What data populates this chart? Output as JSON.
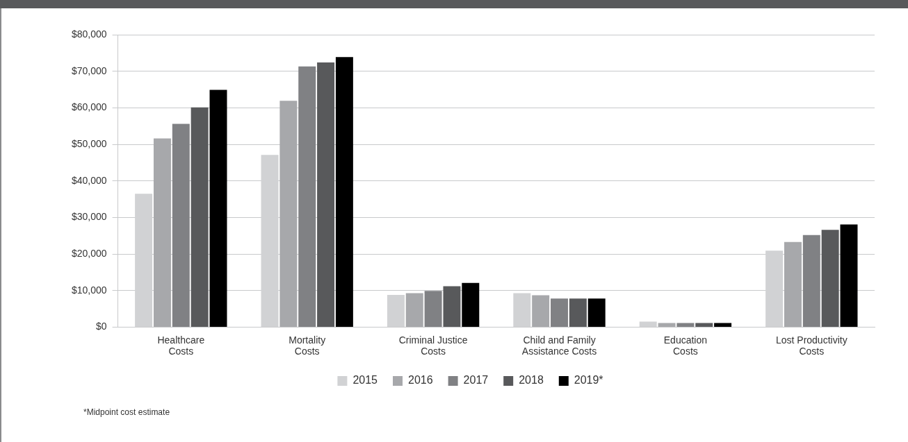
{
  "chart_data": {
    "type": "bar",
    "categories": [
      "Healthcare\nCosts",
      "Mortality\nCosts",
      "Criminal Justice\nCosts",
      "Child and Family\nAssistance Costs",
      "Education\nCosts",
      "Lost Productivity\nCosts"
    ],
    "series": [
      {
        "name": "2015",
        "color": "#d1d2d4",
        "values": [
          36500,
          47100,
          8800,
          9300,
          1500,
          20900
        ]
      },
      {
        "name": "2016",
        "color": "#a7a8ab",
        "values": [
          51600,
          61900,
          9300,
          8700,
          1100,
          23300
        ]
      },
      {
        "name": "2017",
        "color": "#808184",
        "values": [
          55600,
          71300,
          9900,
          7800,
          1100,
          25200
        ]
      },
      {
        "name": "2018",
        "color": "#58595b",
        "values": [
          60100,
          72400,
          11200,
          7800,
          1100,
          26600
        ]
      },
      {
        "name": "2019*",
        "color": "#000000",
        "values": [
          64900,
          73900,
          12100,
          7800,
          1100,
          28100
        ]
      }
    ],
    "ylim": [
      0,
      80000
    ],
    "yticks": [
      {
        "value": 0,
        "label": "$0"
      },
      {
        "value": 10000,
        "label": "$10,000"
      },
      {
        "value": 20000,
        "label": "$20,000"
      },
      {
        "value": 30000,
        "label": "$30,000"
      },
      {
        "value": 40000,
        "label": "$40,000"
      },
      {
        "value": 50000,
        "label": "$50,000"
      },
      {
        "value": 60000,
        "label": "$60,000"
      },
      {
        "value": 70000,
        "label": "$70,000"
      },
      {
        "value": 80000,
        "label": "$80,000"
      }
    ],
    "grid": "y",
    "legend": "bottom",
    "annotations": [
      "*Midpoint cost estimate"
    ]
  }
}
